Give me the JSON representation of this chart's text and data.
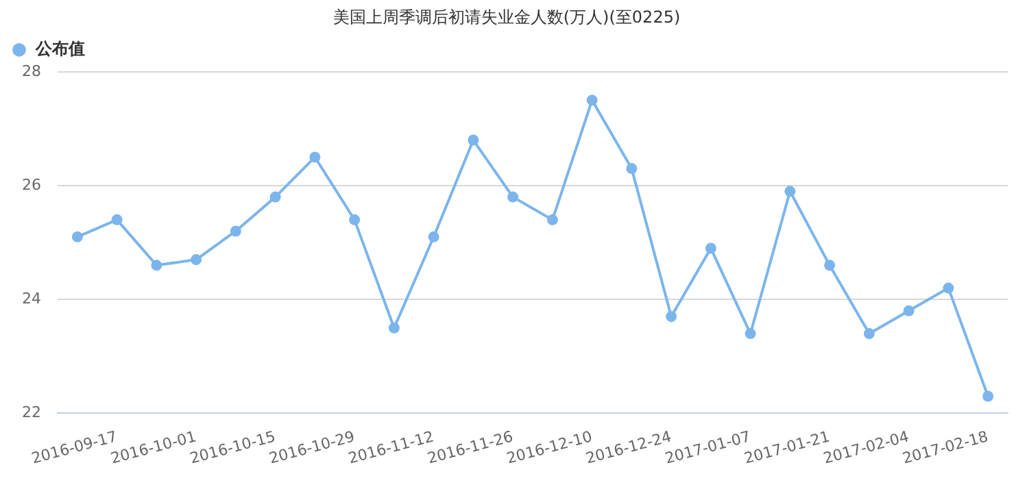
{
  "chart_data": {
    "type": "line",
    "title": "美国上周季调后初请失业金人数(万人)(至0225)",
    "categories": [
      null,
      "2016-09-17",
      null,
      "2016-10-01",
      null,
      "2016-10-15",
      null,
      "2016-10-29",
      null,
      "2016-11-12",
      null,
      "2016-11-26",
      null,
      "2016-12-10",
      null,
      "2016-12-24",
      null,
      "2017-01-07",
      null,
      "2017-01-21",
      null,
      "2017-02-04",
      null,
      "2017-02-18"
    ],
    "series": [
      {
        "name": "公布值",
        "color": "#7cb5ec",
        "values": [
          25.1,
          25.4,
          24.6,
          24.7,
          25.2,
          25.8,
          26.5,
          25.4,
          23.5,
          25.1,
          26.8,
          25.8,
          25.4,
          27.5,
          26.3,
          23.7,
          24.9,
          23.4,
          25.9,
          24.6,
          23.4,
          23.8,
          24.2,
          22.3
        ]
      }
    ],
    "ylim": [
      22,
      28
    ],
    "yticks": [
      22,
      24,
      26,
      28
    ],
    "grid": "y",
    "legend": "top left",
    "marker": "circle",
    "line_style": "solid"
  }
}
